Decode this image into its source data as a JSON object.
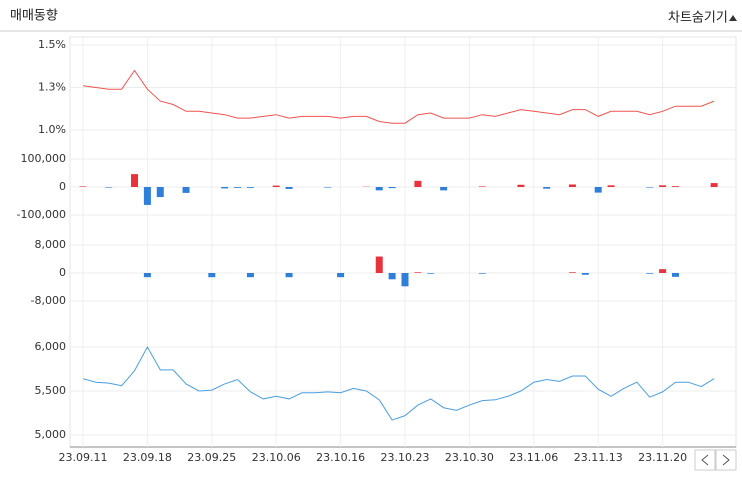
{
  "header": {
    "title": "매매동향",
    "toggle": "차트숨기기"
  },
  "chart_data": [
    {
      "type": "line",
      "color": "#ef5350",
      "ylim": [
        1.0,
        1.5
      ],
      "yticks": [
        {
          "value": 1.5,
          "label": "1.5%"
        },
        {
          "value": 1.25,
          "label": "1.3%"
        },
        {
          "value": 1.0,
          "label": "1.0%"
        }
      ],
      "grid": true,
      "values": [
        1.26,
        1.25,
        1.24,
        1.24,
        1.35,
        1.24,
        1.17,
        1.15,
        1.11,
        1.11,
        1.1,
        1.09,
        1.07,
        1.07,
        1.08,
        1.09,
        1.07,
        1.08,
        1.08,
        1.08,
        1.07,
        1.08,
        1.08,
        1.05,
        1.04,
        1.04,
        1.09,
        1.1,
        1.07,
        1.07,
        1.07,
        1.09,
        1.08,
        1.1,
        1.12,
        1.11,
        1.1,
        1.09,
        1.12,
        1.12,
        1.08,
        1.11,
        1.11,
        1.11,
        1.09,
        1.11,
        1.14,
        1.14,
        1.14,
        1.17
      ]
    },
    {
      "type": "bar",
      "positive_color": "#e8323c",
      "negative_color": "#2e7fd9",
      "ylim": [
        -100000,
        100000
      ],
      "yticks": [
        {
          "value": 100000,
          "label": "100,000"
        },
        0,
        {
          "value": -100000,
          "label": "-100,000"
        }
      ],
      "grid": true,
      "values": [
        2000,
        0,
        -2000,
        0,
        46000,
        -64000,
        -36000,
        0,
        -21000,
        0,
        0,
        -5000,
        -3000,
        -3000,
        0,
        5000,
        -7000,
        0,
        0,
        -2000,
        0,
        0,
        1000,
        -12000,
        -4000,
        0,
        22000,
        0,
        -12000,
        0,
        0,
        2000,
        0,
        0,
        8000,
        0,
        -6000,
        0,
        9000,
        0,
        -20000,
        6000,
        0,
        0,
        -2000,
        6000,
        3000,
        0,
        0,
        14000
      ]
    },
    {
      "type": "bar",
      "positive_color": "#e8323c",
      "negative_color": "#2e7fd9",
      "ylim": [
        -8000,
        8000
      ],
      "yticks": [
        {
          "value": 8000,
          "label": "8,000"
        },
        0,
        {
          "value": -8000,
          "label": "-8,000"
        }
      ],
      "grid": true,
      "values": [
        0,
        0,
        0,
        0,
        0,
        -1200,
        0,
        0,
        0,
        0,
        -1200,
        0,
        0,
        -1200,
        0,
        0,
        -1200,
        0,
        0,
        0,
        -1200,
        0,
        0,
        4700,
        -1800,
        -3800,
        200,
        -200,
        0,
        0,
        0,
        -200,
        0,
        0,
        0,
        0,
        0,
        0,
        200,
        -500,
        0,
        0,
        0,
        0,
        -200,
        1100,
        -1100,
        0,
        0,
        0
      ]
    },
    {
      "type": "line",
      "color": "#4a9ee0",
      "ylim": [
        5000,
        6000
      ],
      "yticks": [
        {
          "value": 6000,
          "label": "6,000"
        },
        {
          "value": 5500,
          "label": "5,500"
        },
        {
          "value": 5000,
          "label": "5,000"
        }
      ],
      "grid": true,
      "categories": [
        "23.09.11",
        null,
        null,
        null,
        null,
        "23.09.18",
        null,
        null,
        null,
        null,
        "23.09.25",
        null,
        null,
        null,
        null,
        "23.10.06",
        null,
        null,
        null,
        null,
        "23.10.16",
        null,
        null,
        null,
        null,
        "23.10.23",
        null,
        null,
        null,
        null,
        "23.10.30",
        null,
        null,
        null,
        null,
        "23.11.06",
        null,
        null,
        null,
        null,
        "23.11.13",
        null,
        null,
        null,
        null,
        "23.11.20",
        null,
        null,
        null,
        null
      ],
      "values": [
        5640,
        5600,
        5590,
        5560,
        5730,
        6000,
        5740,
        5740,
        5580,
        5500,
        5510,
        5580,
        5630,
        5490,
        5410,
        5440,
        5410,
        5480,
        5480,
        5490,
        5480,
        5530,
        5500,
        5400,
        5170,
        5220,
        5340,
        5410,
        5310,
        5280,
        5340,
        5390,
        5400,
        5440,
        5500,
        5600,
        5630,
        5610,
        5670,
        5670,
        5520,
        5440,
        5530,
        5600,
        5430,
        5490,
        5600,
        5600,
        5550,
        5640
      ]
    }
  ]
}
